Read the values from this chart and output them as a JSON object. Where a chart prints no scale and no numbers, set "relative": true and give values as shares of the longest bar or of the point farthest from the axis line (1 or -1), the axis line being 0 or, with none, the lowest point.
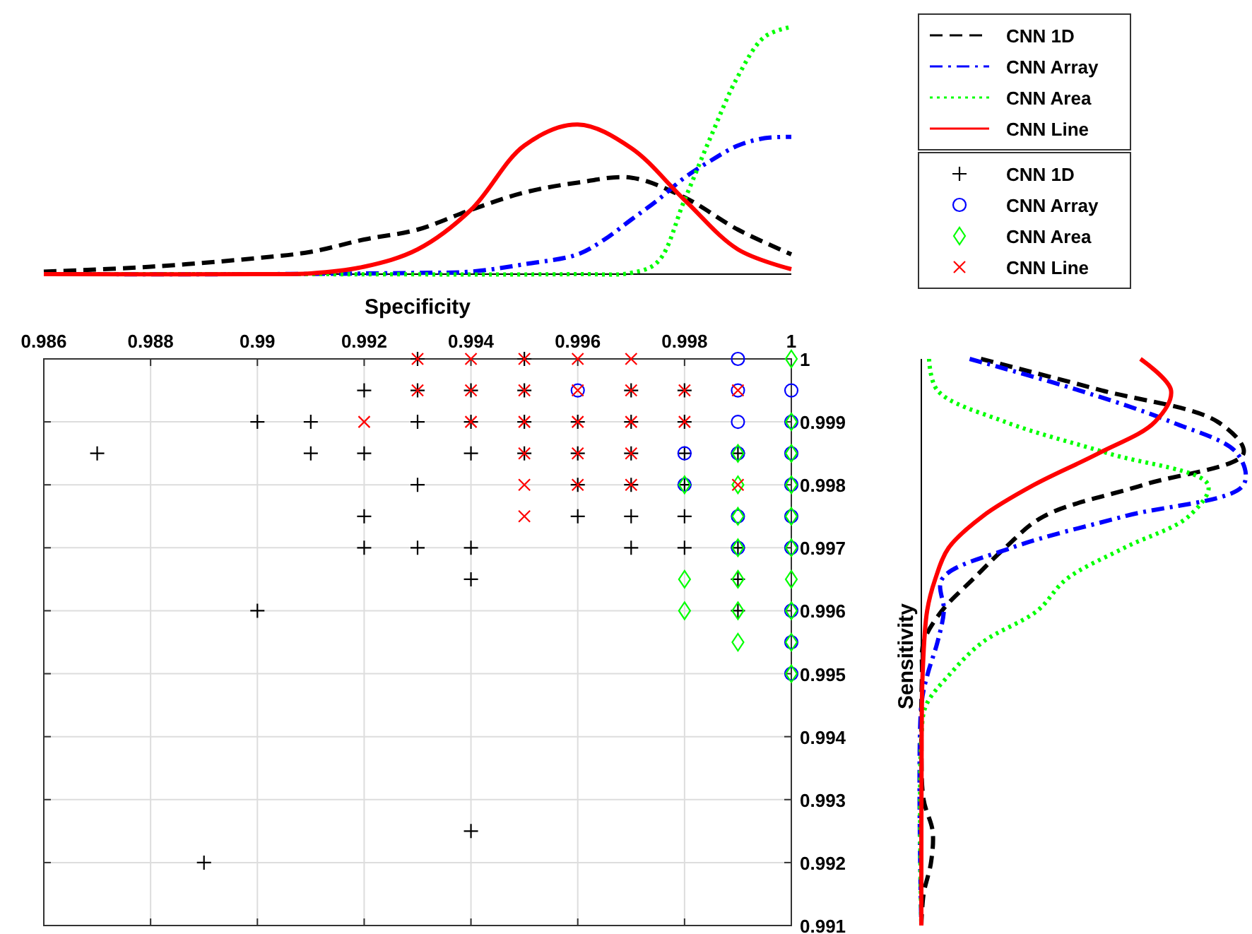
{
  "chart_data": [
    {
      "type": "line",
      "relative": true,
      "xlim": [
        0.986,
        1
      ],
      "legend": "right",
      "series": [
        {
          "name": "CNN 1D",
          "color": "#000000",
          "line_style": "dashed",
          "x": [
            0.986,
            0.988,
            0.99,
            0.991,
            0.992,
            0.993,
            0.994,
            0.995,
            0.996,
            0.997,
            0.998,
            0.999,
            1
          ],
          "values": [
            0.01,
            0.03,
            0.065,
            0.09,
            0.14,
            0.18,
            0.26,
            0.33,
            0.37,
            0.39,
            0.31,
            0.18,
            0.08
          ]
        },
        {
          "name": "CNN Array",
          "color": "#0000ff",
          "line_style": "dashdot",
          "x": [
            0.986,
            0.99,
            0.993,
            0.994,
            0.995,
            0.996,
            0.9965,
            0.997,
            0.9975,
            0.998,
            0.9985,
            0.999,
            0.9995,
            1
          ],
          "values": [
            0,
            0,
            0.005,
            0.01,
            0.04,
            0.08,
            0.14,
            0.22,
            0.3,
            0.39,
            0.46,
            0.52,
            0.55,
            0.555
          ]
        },
        {
          "name": "CNN Area",
          "color": "#00ff00",
          "line_style": "dotted",
          "x": [
            0.986,
            0.99,
            0.996,
            0.997,
            0.9975,
            0.998,
            0.9985,
            0.999,
            0.9995,
            1
          ],
          "values": [
            0,
            0,
            0,
            0.005,
            0.05,
            0.3,
            0.56,
            0.8,
            0.96,
            1
          ]
        },
        {
          "name": "CNN Line",
          "color": "#ff0000",
          "line_style": "solid",
          "x": [
            0.986,
            0.99,
            0.991,
            0.992,
            0.993,
            0.994,
            0.995,
            0.996,
            0.997,
            0.998,
            0.999,
            1
          ],
          "values": [
            0,
            0,
            0.003,
            0.03,
            0.1,
            0.26,
            0.52,
            0.605,
            0.51,
            0.3,
            0.1,
            0.02
          ]
        }
      ]
    },
    {
      "type": "scatter",
      "xlabel": "Specificity",
      "xlim": [
        0.986,
        1
      ],
      "xticks": [
        0.986,
        0.988,
        0.99,
        0.992,
        0.994,
        0.996,
        0.998,
        1
      ],
      "ylim": [
        0.991,
        1
      ],
      "yticks": [
        0.991,
        0.992,
        0.993,
        0.994,
        0.995,
        0.996,
        0.997,
        0.998,
        0.999,
        1
      ],
      "grid": true,
      "legend": "top right",
      "series": [
        {
          "name": "CNN 1D",
          "color": "#000000",
          "marker": "cross",
          "x": [
            0.993,
            0.995,
            0.992,
            0.993,
            0.994,
            0.995,
            0.997,
            0.998,
            0.99,
            0.991,
            0.993,
            0.994,
            0.995,
            0.996,
            0.997,
            0.998,
            0.987,
            0.991,
            0.992,
            0.994,
            0.995,
            0.996,
            0.997,
            0.998,
            0.999,
            0.993,
            0.996,
            0.997,
            0.998,
            0.992,
            0.996,
            0.997,
            0.998,
            0.992,
            0.993,
            0.994,
            0.997,
            0.998,
            0.999,
            0.994,
            0.999,
            0.99,
            0.999,
            0.994,
            0.989
          ],
          "values": [
            1,
            1,
            0.9995,
            0.9995,
            0.9995,
            0.9995,
            0.9995,
            0.9995,
            0.999,
            0.999,
            0.999,
            0.999,
            0.999,
            0.999,
            0.999,
            0.999,
            0.9985,
            0.9985,
            0.9985,
            0.9985,
            0.9985,
            0.9985,
            0.9985,
            0.9985,
            0.9985,
            0.998,
            0.998,
            0.998,
            0.998,
            0.9975,
            0.9975,
            0.9975,
            0.9975,
            0.997,
            0.997,
            0.997,
            0.997,
            0.997,
            0.997,
            0.9965,
            0.9965,
            0.996,
            0.996,
            0.9925,
            0.992
          ]
        },
        {
          "name": "CNN Array",
          "color": "#0000ff",
          "marker": "circle",
          "x": [
            0.999,
            0.996,
            0.999,
            1,
            0.999,
            1,
            0.998,
            0.999,
            1,
            0.998,
            1,
            0.999,
            1,
            0.999,
            1,
            1,
            1,
            1
          ],
          "values": [
            1,
            0.9995,
            0.9995,
            0.9995,
            0.999,
            0.999,
            0.9985,
            0.9985,
            0.9985,
            0.998,
            0.998,
            0.9975,
            0.9975,
            0.997,
            0.997,
            0.996,
            0.9955,
            0.995
          ]
        },
        {
          "name": "CNN Area",
          "color": "#00ff00",
          "marker": "diamond",
          "x": [
            1,
            1,
            0.999,
            1,
            0.998,
            0.999,
            1,
            0.999,
            1,
            0.999,
            1,
            0.998,
            0.999,
            1,
            0.998,
            0.999,
            1,
            0.999,
            1,
            1
          ],
          "values": [
            1,
            0.999,
            0.9985,
            0.9985,
            0.998,
            0.998,
            0.998,
            0.9975,
            0.9975,
            0.997,
            0.997,
            0.9965,
            0.9965,
            0.9965,
            0.996,
            0.996,
            0.996,
            0.9955,
            0.9955,
            0.995
          ]
        },
        {
          "name": "CNN Line",
          "color": "#ff0000",
          "marker": "x",
          "x": [
            0.993,
            0.994,
            0.995,
            0.996,
            0.997,
            0.993,
            0.994,
            0.995,
            0.996,
            0.997,
            0.998,
            0.999,
            0.992,
            0.994,
            0.995,
            0.996,
            0.997,
            0.998,
            0.995,
            0.996,
            0.997,
            0.995,
            0.996,
            0.997,
            0.999,
            0.995
          ],
          "values": [
            1,
            1,
            1,
            1,
            1,
            0.9995,
            0.9995,
            0.9995,
            0.9995,
            0.9995,
            0.9995,
            0.9995,
            0.999,
            0.999,
            0.999,
            0.999,
            0.999,
            0.999,
            0.9985,
            0.9985,
            0.9985,
            0.998,
            0.998,
            0.998,
            0.998,
            0.9975
          ]
        }
      ]
    },
    {
      "type": "line",
      "relative": true,
      "orientation": "horizontal",
      "ylim": [
        0.991,
        1
      ],
      "ylabel": "Sensitivity",
      "legend": false,
      "series": [
        {
          "color": "#000000",
          "line_style": "dashed",
          "x": [
            1,
            0.9995,
            0.999,
            0.9985,
            0.998,
            0.9975,
            0.997,
            0.9965,
            0.996,
            0.9955,
            0.995,
            0.994,
            0.993,
            0.9925,
            0.992,
            0.9915,
            0.991
          ],
          "values": [
            0.185,
            0.56,
            0.92,
            1,
            0.69,
            0.38,
            0.26,
            0.16,
            0.064,
            0.007,
            0.002,
            0,
            0.007,
            0.035,
            0.03,
            0.007,
            0
          ]
        },
        {
          "color": "#0000ff",
          "line_style": "dashdot",
          "x": [
            1,
            0.9995,
            0.999,
            0.9985,
            0.998,
            0.9975,
            0.997,
            0.9965,
            0.996,
            0.9955,
            0.995,
            0.9945,
            0.991
          ],
          "values": [
            0.15,
            0.49,
            0.775,
            0.98,
            1,
            0.63,
            0.28,
            0.064,
            0.07,
            0.05,
            0.02,
            0,
            0
          ]
        },
        {
          "color": "#00ff00",
          "line_style": "dotted",
          "x": [
            1,
            0.9995,
            0.999,
            0.9985,
            0.998,
            0.9975,
            0.997,
            0.9965,
            0.996,
            0.9955,
            0.995,
            0.9945,
            0.994,
            0.991
          ],
          "values": [
            0.024,
            0.05,
            0.26,
            0.58,
            0.89,
            0.83,
            0.63,
            0.45,
            0.36,
            0.19,
            0.09,
            0.015,
            0,
            0
          ]
        },
        {
          "color": "#ff0000",
          "line_style": "solid",
          "x": [
            1,
            0.9995,
            0.999,
            0.9985,
            0.998,
            0.9975,
            0.997,
            0.9965,
            0.996,
            0.995,
            0.994,
            0.991
          ],
          "values": [
            0.68,
            0.775,
            0.725,
            0.55,
            0.35,
            0.19,
            0.085,
            0.043,
            0.018,
            0.004,
            0.001,
            0
          ]
        }
      ]
    }
  ]
}
